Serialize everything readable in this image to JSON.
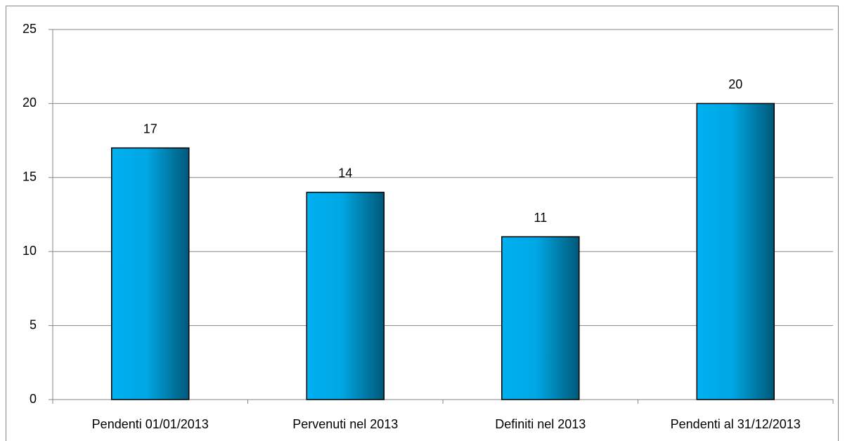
{
  "chart_data": {
    "type": "bar",
    "categories": [
      "Pendenti 01/01/2013",
      "Pervenuti nel 2013",
      "Definiti nel 2013",
      "Pendenti al 31/12/2013"
    ],
    "values": [
      17,
      14,
      11,
      20
    ],
    "color": "#00b0f0",
    "ylim": [
      0,
      25
    ],
    "yticks": [
      0,
      5,
      10,
      15,
      20,
      25
    ],
    "grid": true
  }
}
